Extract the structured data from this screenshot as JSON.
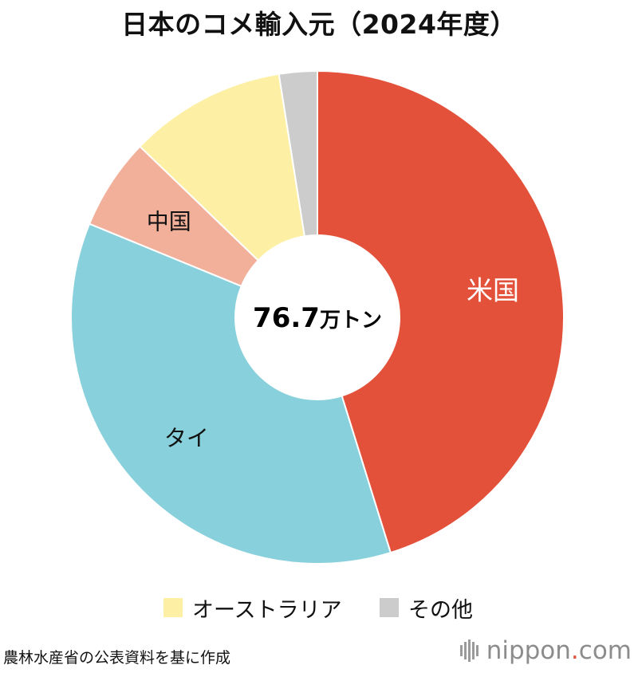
{
  "title": "日本のコメ輸入元（2024年度）",
  "center_label": {
    "value": "76.7",
    "unit": "万トン"
  },
  "chart_data": {
    "type": "pie",
    "title": "日本のコメ輸入元（2024年度）",
    "total": "76.7万トン",
    "slices": [
      {
        "label": "米国",
        "value": 45.2,
        "color": "#e4513a",
        "label_color": "#ffffff"
      },
      {
        "label": "タイ",
        "value": 36.0,
        "color": "#88d0db",
        "label_color": "#111111"
      },
      {
        "label": "中国",
        "value": 6.0,
        "color": "#f2b09b",
        "label_color": "#111111"
      },
      {
        "label": "オーストラリア",
        "value": 10.3,
        "color": "#fdf0a4",
        "label_color": "#111111"
      },
      {
        "label": "その他",
        "value": 2.5,
        "color": "#cccccc",
        "label_color": "#111111"
      }
    ],
    "value_unit": "%",
    "labeled_on_chart": [
      "米国",
      "タイ",
      "中国"
    ],
    "legend": {
      "placement": "bottom",
      "items": [
        {
          "label": "オーストラリア",
          "color": "#fdf0a4"
        },
        {
          "label": "その他",
          "color": "#cccccc"
        }
      ]
    }
  },
  "source": "農林水産省の公表資料を基に作成",
  "logo": {
    "name": "nippon",
    "dot": ".",
    "suffix": "com"
  }
}
